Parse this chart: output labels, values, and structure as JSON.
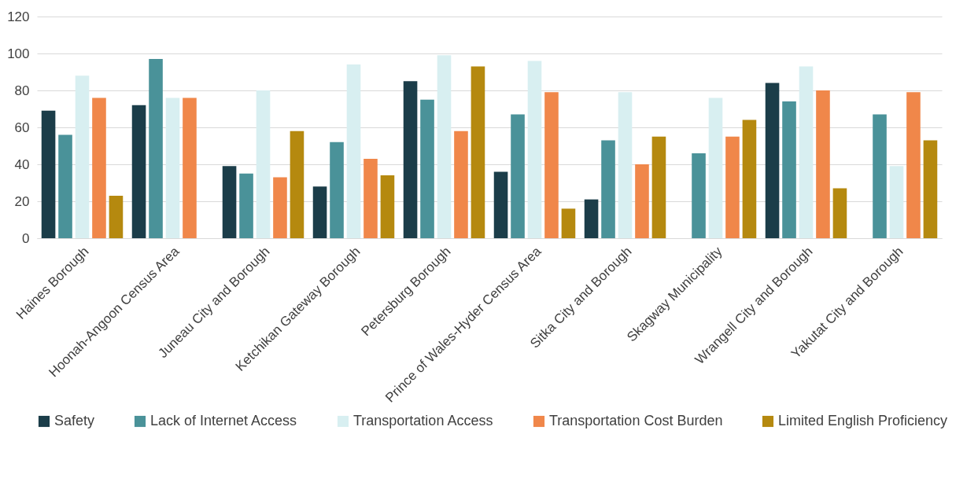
{
  "chart_data": {
    "type": "bar",
    "categories": [
      "Haines Borough",
      "Hoonah-Angoon Census Area",
      "Juneau City and Borough",
      "Ketchikan Gateway Borough",
      "Petersburg Borough",
      "Prince of Wales-Hyder Census Area",
      "Sitka City and Borough",
      "Skagway Municipality",
      "Wrangell City and Borough",
      "Yakutat City and Borough"
    ],
    "series": [
      {
        "name": "Safety",
        "color": "#1b3d49",
        "values": [
          69,
          72,
          39,
          28,
          85,
          36,
          21,
          null,
          84,
          null
        ]
      },
      {
        "name": "Lack of Internet Access",
        "color": "#4a9299",
        "values": [
          56,
          97,
          35,
          52,
          75,
          67,
          53,
          46,
          74,
          67
        ]
      },
      {
        "name": "Transportation Access",
        "color": "#d8eff1",
        "values": [
          88,
          76,
          80,
          94,
          99,
          96,
          79,
          76,
          93,
          39
        ]
      },
      {
        "name": "Transportation Cost Burden",
        "color": "#f0874a",
        "values": [
          76,
          76,
          33,
          43,
          58,
          79,
          40,
          55,
          80,
          79
        ]
      },
      {
        "name": "Limited English Proficiency",
        "color": "#b5890f",
        "values": [
          23,
          null,
          58,
          34,
          93,
          16,
          55,
          64,
          27,
          53
        ]
      }
    ],
    "ylim": [
      0,
      120
    ],
    "yticks": [
      0,
      20,
      40,
      60,
      80,
      100,
      120
    ],
    "grid": "y",
    "legend": "bottom"
  }
}
